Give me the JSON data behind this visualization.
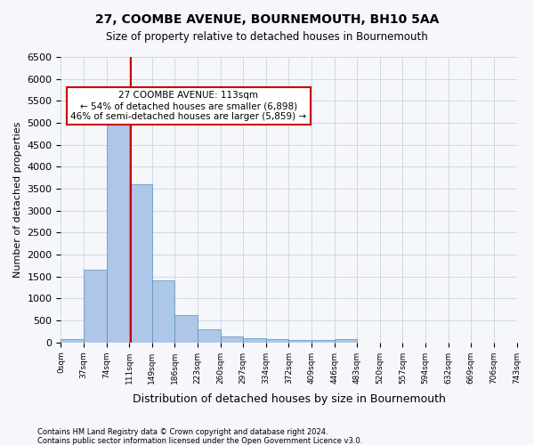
{
  "title1": "27, COOMBE AVENUE, BOURNEMOUTH, BH10 5AA",
  "title2": "Size of property relative to detached houses in Bournemouth",
  "xlabel": "Distribution of detached houses by size in Bournemouth",
  "ylabel": "Number of detached properties",
  "bin_labels": [
    "0sqm",
    "37sqm",
    "74sqm",
    "111sqm",
    "149sqm",
    "186sqm",
    "223sqm",
    "260sqm",
    "297sqm",
    "334sqm",
    "372sqm",
    "409sqm",
    "446sqm",
    "483sqm",
    "520sqm",
    "557sqm",
    "594sqm",
    "632sqm",
    "669sqm",
    "706sqm",
    "743sqm"
  ],
  "bar_values": [
    70,
    1650,
    5080,
    3600,
    1420,
    620,
    290,
    145,
    100,
    75,
    55,
    60,
    70,
    0,
    0,
    0,
    0,
    0,
    0,
    0
  ],
  "bar_color": "#aec6e8",
  "bar_edge_color": "#5a8fc0",
  "grid_color": "#d0d8e8",
  "red_line_x": 2.57,
  "annotation_text": "27 COOMBE AVENUE: 113sqm\n← 54% of detached houses are smaller (6,898)\n46% of semi-detached houses are larger (5,859) →",
  "annotation_box_color": "#ffffff",
  "annotation_box_edge": "#cc0000",
  "ylim": [
    0,
    6500
  ],
  "footnote1": "Contains HM Land Registry data © Crown copyright and database right 2024.",
  "footnote2": "Contains public sector information licensed under the Open Government Licence v3.0.",
  "bg_color": "#f5f7fb"
}
